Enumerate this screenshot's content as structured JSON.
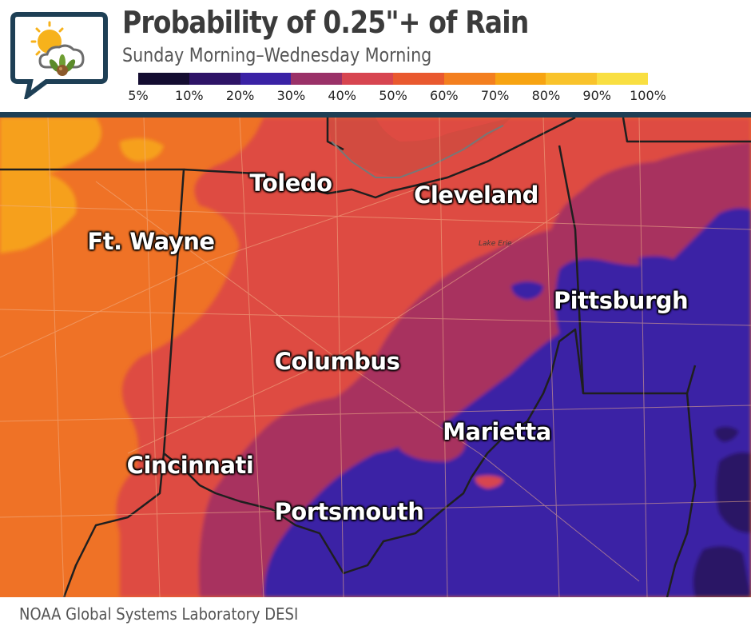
{
  "title": "Probability of 0.25\"+ of Rain",
  "subtitle": "Sunday Morning–Wednesday Morning",
  "legend": {
    "colors": [
      "#140d31",
      "#2e1467",
      "#3a22a5",
      "#9a3168",
      "#d74550",
      "#e9592f",
      "#f37f1f",
      "#f7a412",
      "#f9c32b",
      "#f9df42",
      "#fdf59a"
    ],
    "labels": [
      "5%",
      "10%",
      "20%",
      "30%",
      "40%",
      "50%",
      "60%",
      "70%",
      "80%",
      "90%",
      "100%"
    ]
  },
  "map": {
    "lake_label": "Lake Erie",
    "cities": [
      {
        "name": "Toledo"
      },
      {
        "name": "Cleveland"
      },
      {
        "name": "Ft. Wayne"
      },
      {
        "name": "Pittsburgh"
      },
      {
        "name": "Columbus"
      },
      {
        "name": "Marietta"
      },
      {
        "name": "Cincinnati"
      },
      {
        "name": "Portsmouth"
      }
    ]
  },
  "footer": {
    "source": "NOAA Global Systems Laboratory DESI"
  }
}
